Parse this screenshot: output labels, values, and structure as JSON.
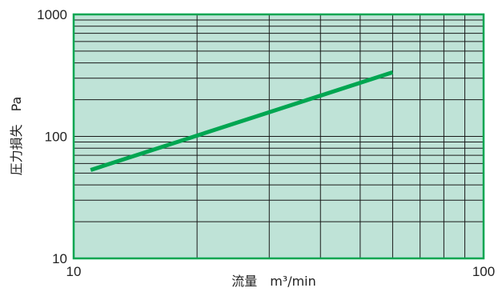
{
  "chart_data": {
    "type": "line",
    "x_scale": "log",
    "y_scale": "log",
    "xlim": [
      10,
      100
    ],
    "ylim": [
      10,
      1000
    ],
    "x_ticks": [
      {
        "value": 10,
        "label": "10"
      },
      {
        "value": 100,
        "label": "100"
      }
    ],
    "y_ticks": [
      {
        "value": 10,
        "label": "10"
      },
      {
        "value": 100,
        "label": "100"
      },
      {
        "value": 1000,
        "label": "1000"
      }
    ],
    "xlabel": "流量　m³/min",
    "ylabel": "圧力損失　Pa",
    "grid": true,
    "series": [
      {
        "x": [
          11,
          60
        ],
        "y": [
          53,
          335
        ]
      }
    ],
    "colors": {
      "plot_background": "#bfe3d7",
      "frame": "#00a651",
      "grid": "#1a1a1a",
      "line": "#00a651"
    }
  }
}
